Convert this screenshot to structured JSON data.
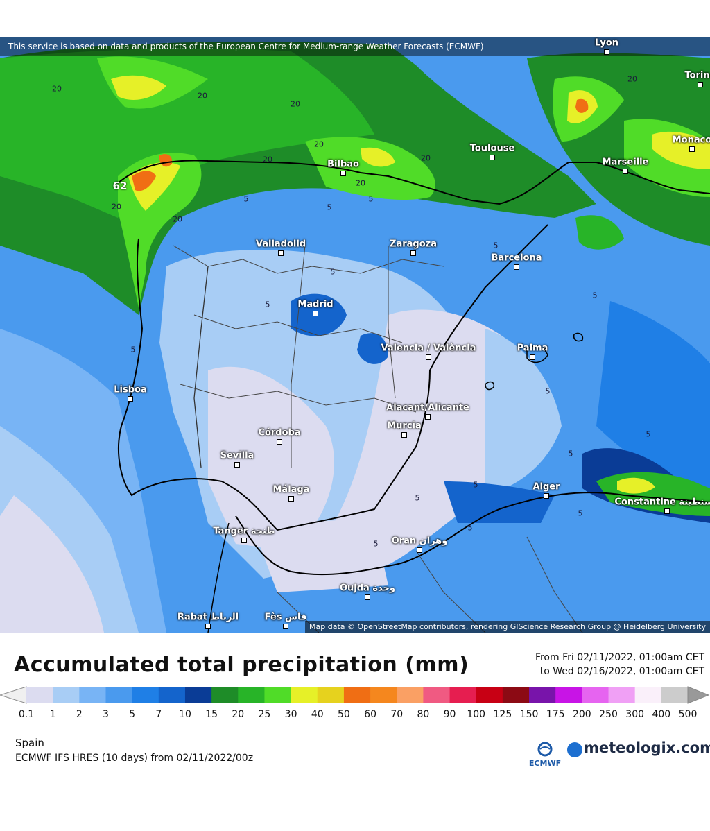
{
  "attribution_top": "This service is based on data and products of the European Centre for Medium-range Weather Forecasts (ECMWF)",
  "attribution_bottom": "Map data © OpenStreetMap contributors, rendering GIScience Research Group @ Heidelberg University",
  "max_label": "62",
  "cities": [
    {
      "name": "Lyon",
      "icon": "city-dot"
    },
    {
      "name": "Torino",
      "icon": "city-dot"
    },
    {
      "name": "Toulouse",
      "icon": "city-dot"
    },
    {
      "name": "Monaco",
      "icon": "city-dot"
    },
    {
      "name": "Marseille",
      "icon": "city-dot"
    },
    {
      "name": "Bilbao",
      "icon": "city-dot"
    },
    {
      "name": "Valladolid",
      "icon": "city-dot"
    },
    {
      "name": "Zaragoza",
      "icon": "city-dot"
    },
    {
      "name": "Barcelona",
      "icon": "city-dot"
    },
    {
      "name": "Madrid",
      "icon": "city-dot"
    },
    {
      "name": "Valencia / València",
      "icon": "city-dot"
    },
    {
      "name": "Palma",
      "icon": "city-dot"
    },
    {
      "name": "Lisboa",
      "icon": "city-dot"
    },
    {
      "name": "Alacant/Alicante",
      "icon": "city-dot"
    },
    {
      "name": "Murcia",
      "icon": "city-dot"
    },
    {
      "name": "Córdoba",
      "icon": "city-dot"
    },
    {
      "name": "Sevilla",
      "icon": "city-dot"
    },
    {
      "name": "Málaga",
      "icon": "city-dot"
    },
    {
      "name": "Alger",
      "icon": "city-dot"
    },
    {
      "name": "Constantine قسنطينة",
      "icon": "city-dot"
    },
    {
      "name": "Tanger طنجة",
      "icon": "city-dot"
    },
    {
      "name": "Oran وهران",
      "icon": "city-dot"
    },
    {
      "name": "Oujda وجدة",
      "icon": "city-dot"
    },
    {
      "name": "Rabat الرباط",
      "icon": "city-dot"
    },
    {
      "name": "Fès فاس",
      "icon": "city-dot"
    }
  ],
  "contour_labels": [
    "20",
    "20",
    "20",
    "20",
    "20",
    "20",
    "20",
    "20",
    "20",
    "20",
    "5",
    "5",
    "5",
    "5",
    "5",
    "5",
    "5",
    "5",
    "5",
    "5",
    "5",
    "5",
    "5",
    "5",
    "5",
    "5"
  ],
  "title": "Accumulated total precipitation (mm)",
  "period_from": "From Fri 02/11/2022, 01:00am CET",
  "period_to": "to Wed 02/16/2022, 01:00am CET",
  "legend": {
    "ticks": [
      "0.1",
      "1",
      "2",
      "3",
      "5",
      "7",
      "10",
      "15",
      "20",
      "25",
      "30",
      "40",
      "50",
      "60",
      "70",
      "80",
      "90",
      "100",
      "125",
      "150",
      "175",
      "200",
      "250",
      "300",
      "400",
      "500"
    ],
    "colors": [
      "#dcdcf0",
      "#a8cdf5",
      "#78b4f5",
      "#4a9aee",
      "#1f7fe6",
      "#1464cc",
      "#0a3c96",
      "#1e8c28",
      "#28b428",
      "#50dc28",
      "#e6f028",
      "#e6d21e",
      "#f06e14",
      "#f5871e",
      "#faa064",
      "#f05a82",
      "#e61e50",
      "#c80014",
      "#8c0a14",
      "#7814aa",
      "#c814e6",
      "#e664f0",
      "#f0a0f5",
      "#faf0fa",
      "#cccccc"
    ],
    "left_arrow_color": "#f0f0f0",
    "right_arrow_color": "#999999"
  },
  "region": "Spain",
  "model": "ECMWF IFS HRES (10 days) from 02/11/2022/00z",
  "ecmwf_logo_text": "ECMWF",
  "brand": "meteologix.com"
}
